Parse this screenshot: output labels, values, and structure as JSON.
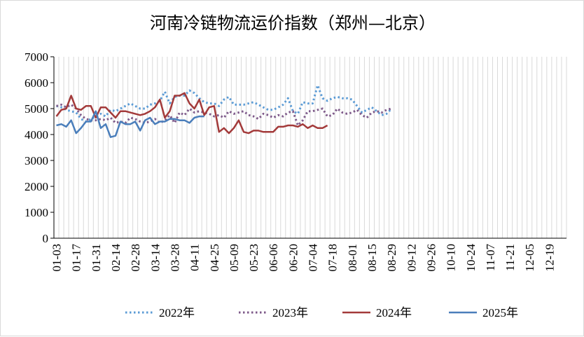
{
  "chart_data": {
    "type": "line",
    "title": "河南冷链物流运价指数（郑州—北京）",
    "xlabel": "",
    "ylabel": "",
    "ylim": [
      0,
      7000
    ],
    "yticks": [
      0,
      1000,
      2000,
      3000,
      4000,
      5000,
      6000,
      7000
    ],
    "grid": "vertical",
    "legend": "bottom",
    "x_tick_labels": [
      "01-03",
      "01-17",
      "01-31",
      "02-14",
      "02-28",
      "03-14",
      "03-28",
      "04-11",
      "04-25",
      "05-09",
      "05-23",
      "06-06",
      "06-20",
      "07-04",
      "07-18",
      "08-01",
      "08-15",
      "08-29",
      "09-12",
      "09-26",
      "10-10",
      "10-24",
      "11-07",
      "11-21",
      "12-05",
      "12-19"
    ],
    "series": [
      {
        "name": "2022年",
        "color": "#5B9BD5",
        "style": "dotted",
        "values": [
          5100,
          5050,
          4950,
          4900,
          4850,
          4600,
          4500,
          4600,
          4700,
          4800,
          4700,
          4950,
          4900,
          5000,
          5100,
          5200,
          5100,
          5000,
          5000,
          5150,
          5200,
          5300,
          5650,
          5200,
          5450,
          5500,
          5500,
          5700,
          5600,
          5400,
          5250,
          5200,
          5200,
          5100,
          5350,
          5450,
          5150,
          5150,
          5150,
          5200,
          5250,
          5150,
          5050,
          4950,
          4950,
          5050,
          5150,
          5400,
          4900,
          4800,
          5250,
          5200,
          5200,
          5900,
          5400,
          5300,
          5400,
          5450,
          5400,
          5400,
          5350,
          5100,
          4850,
          4950,
          5050,
          4900,
          4750,
          4800,
          5000
        ]
      },
      {
        "name": "2023年",
        "color": "#7E5A8A",
        "style": "dotted",
        "values": [
          5100,
          5150,
          5050,
          5150,
          5000,
          4750,
          4600,
          4550,
          4550,
          4600,
          4550,
          4650,
          4450,
          4500,
          4450,
          4650,
          4600,
          4500,
          4450,
          4500,
          4600,
          4450,
          4550,
          4750,
          4450,
          4850,
          4750,
          5000,
          4850,
          4900,
          4850,
          4800,
          4700,
          4750,
          4650,
          4900,
          4800,
          4850,
          4900,
          4750,
          4700,
          4600,
          4800,
          4750,
          4650,
          4750,
          4700,
          4850,
          4900,
          4350,
          4550,
          4900,
          4900,
          4950,
          5000,
          4700,
          4750,
          5000,
          4850,
          4800,
          4850,
          4950,
          4750,
          4650,
          4850,
          4900,
          4850,
          4950,
          5000
        ]
      },
      {
        "name": "2024年",
        "color": "#A33A3A",
        "style": "solid",
        "values": [
          4700,
          4950,
          5000,
          5500,
          5000,
          4950,
          5100,
          5100,
          4650,
          5050,
          5050,
          4850,
          4650,
          4900,
          4900,
          4850,
          4800,
          4750,
          4800,
          4900,
          5050,
          5350,
          4650,
          4900,
          5500,
          5500,
          5600,
          5200,
          5000,
          5350,
          4750,
          5050,
          5100,
          4100,
          4250,
          4050,
          4250,
          4550,
          4100,
          4050,
          4150,
          4150,
          4100,
          4100,
          4100,
          4300,
          4300,
          4350,
          4350,
          4300,
          4400,
          4250,
          4350,
          4250,
          4250,
          4350
        ]
      },
      {
        "name": "2025年",
        "color": "#4A7EBB",
        "style": "solid",
        "values": [
          4350,
          4400,
          4300,
          4550,
          4050,
          4250,
          4500,
          4500,
          4900,
          4250,
          4400,
          3900,
          3950,
          4500,
          4400,
          4400,
          4500,
          4150,
          4550,
          4650,
          4400,
          4500,
          4500,
          4600,
          4600,
          4550,
          4550,
          4450,
          4650,
          4700,
          4700
        ]
      }
    ]
  }
}
